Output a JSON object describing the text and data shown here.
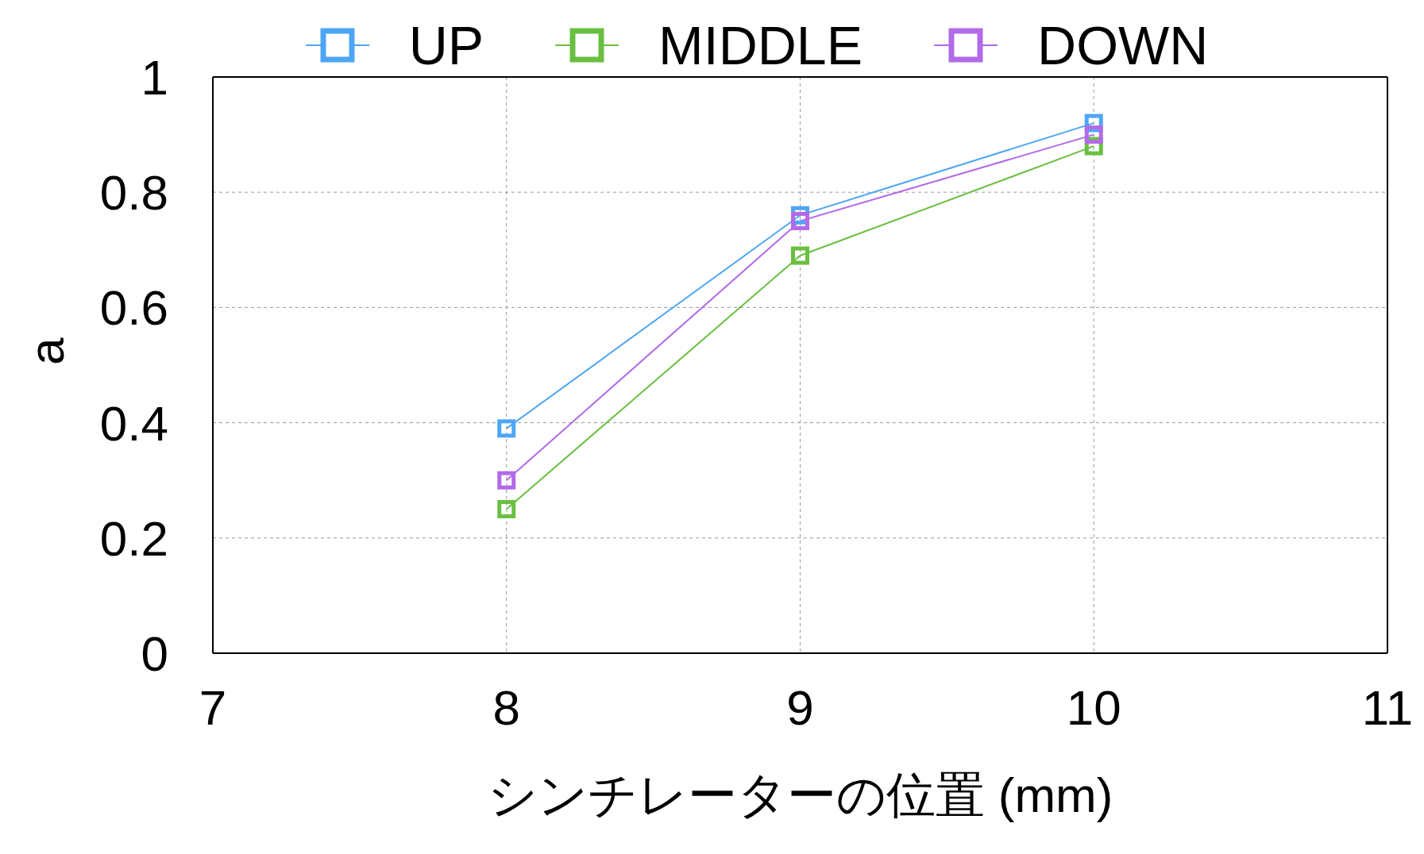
{
  "chart_data": {
    "type": "line",
    "xlabel": "シンチレーターの位置 (mm)",
    "ylabel": "a",
    "x": [
      8,
      9,
      10
    ],
    "series": [
      {
        "name": "UP",
        "color": "#4da6f5",
        "values": [
          0.39,
          0.76,
          0.92
        ]
      },
      {
        "name": "MIDDLE",
        "color": "#6abf40",
        "values": [
          0.25,
          0.69,
          0.88
        ]
      },
      {
        "name": "DOWN",
        "color": "#b26ae8",
        "values": [
          0.3,
          0.75,
          0.9
        ]
      }
    ],
    "xlim": [
      7,
      11
    ],
    "xticks": [
      7,
      8,
      9,
      10,
      11
    ],
    "ylim": [
      0,
      1
    ],
    "yticks": [
      0,
      0.2,
      0.4,
      0.6,
      0.8,
      1
    ],
    "grid": true,
    "legend": "top",
    "marker": "square",
    "line_style": "solid"
  }
}
